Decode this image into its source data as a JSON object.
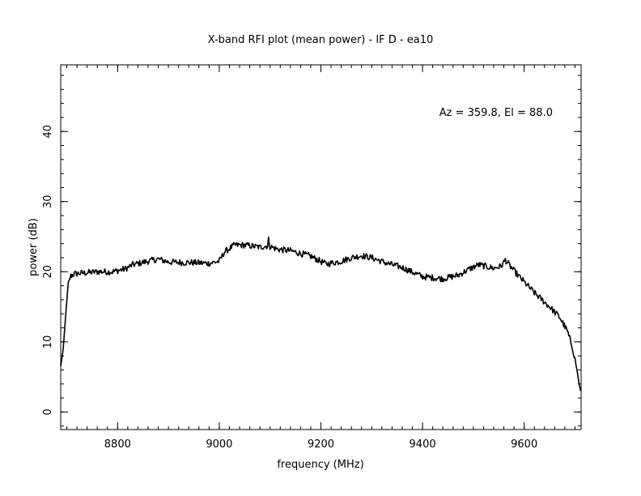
{
  "chart_data": {
    "type": "line",
    "title": "X-band RFI plot (mean power) - IF D - ea10",
    "xlabel": "frequency (MHz)",
    "ylabel": "power (dB)",
    "annotation": "Az = 359.8, El = 88.0",
    "xlim": [
      8688,
      9712
    ],
    "ylim": [
      -2.5,
      49.5
    ],
    "x_ticks": [
      8800,
      9000,
      9200,
      9400,
      9600
    ],
    "y_ticks": [
      0,
      10,
      20,
      30,
      40
    ],
    "x_minor_step": 20,
    "y_minor_step": 2,
    "grid": false,
    "line_color": "#000000",
    "series": [
      {
        "x": [
          8688,
          8693,
          8698,
          8703,
          8708,
          8715,
          8730,
          8760,
          8790,
          8815,
          8830,
          8860,
          8880,
          8900,
          8930,
          8950,
          8980,
          9000,
          9010,
          9030,
          9050,
          9080,
          9095,
          9097,
          9100,
          9115,
          9140,
          9180,
          9210,
          9240,
          9260,
          9280,
          9300,
          9330,
          9360,
          9400,
          9440,
          9470,
          9490,
          9510,
          9540,
          9555,
          9563,
          9570,
          9590,
          9620,
          9650,
          9670,
          9685,
          9695,
          9700,
          9705,
          9708,
          9711
        ],
        "y": [
          6.5,
          9,
          14,
          18.5,
          19.4,
          19.7,
          19.8,
          20,
          20,
          20.4,
          21,
          21.5,
          21.8,
          21.4,
          21.3,
          21.3,
          21.2,
          21.5,
          22.8,
          23.8,
          23.8,
          23.5,
          23.7,
          24.6,
          23.6,
          23.2,
          23,
          22.2,
          21.1,
          21.5,
          22,
          22.3,
          22,
          21.2,
          20.6,
          19.3,
          19,
          19.5,
          20.3,
          21,
          20.5,
          20.8,
          21.7,
          21,
          19.3,
          17,
          15,
          13.5,
          11.5,
          9.2,
          7.5,
          5.5,
          4,
          3
        ]
      }
    ]
  }
}
